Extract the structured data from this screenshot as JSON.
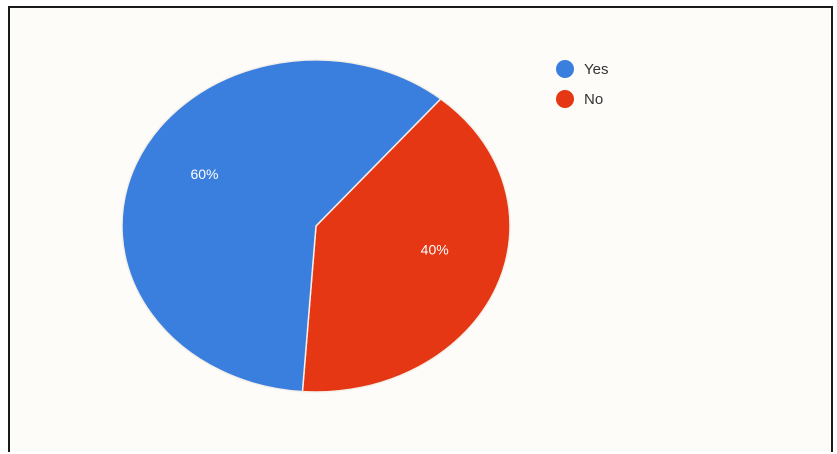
{
  "chart_data": {
    "type": "pie",
    "slices": [
      {
        "label": "Yes",
        "value": 60,
        "display": "60%",
        "color": "#3a7fde"
      },
      {
        "label": "No",
        "value": 40,
        "display": "40%",
        "color": "#e53713"
      }
    ],
    "legend_position": "top-right"
  }
}
